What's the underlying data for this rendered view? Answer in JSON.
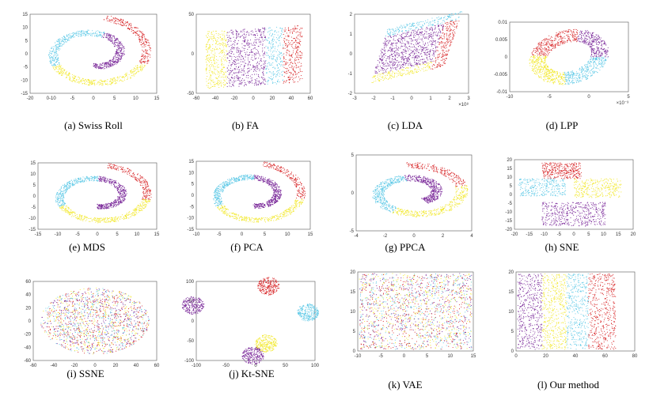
{
  "colors": {
    "purple": "#7b2a9a",
    "yellow": "#f2e82a",
    "cyan": "#5bc8e6",
    "red": "#d8282a",
    "frame": "#555555"
  },
  "figure": {
    "panels": [
      {
        "id": "a",
        "caption": "(a)  Swiss Roll",
        "shape": "roll3d",
        "yticks": [
          "15",
          "10",
          "5",
          "0",
          "-5",
          "-10",
          "-15"
        ],
        "xticks": [
          "-20",
          "0-10",
          "-5",
          "0",
          "5",
          "10",
          "15"
        ]
      },
      {
        "id": "b",
        "caption": "(b)  FA",
        "shape": "fa",
        "yticks": [
          "50",
          "0",
          "-50"
        ],
        "xticks": [
          "-60",
          "-40",
          "-20",
          "0",
          "20",
          "40",
          "60"
        ]
      },
      {
        "id": "c",
        "caption": "(c)  LDA",
        "shape": "lda",
        "yticks": [
          "2",
          "1",
          "0",
          "-1",
          "-2"
        ],
        "xticks": [
          "-3",
          "-2",
          "-1",
          "0",
          "1",
          "2",
          "3"
        ],
        "exp": "×10⁸"
      },
      {
        "id": "d",
        "caption": "(d)  LPP",
        "shape": "lpp",
        "yticks": [
          "0.01",
          "0.005",
          "0",
          "-0.005",
          "-0.01"
        ],
        "xticks": [
          "-10",
          "-5",
          "0",
          "5"
        ],
        "exp": "×10⁻³"
      },
      {
        "id": "e",
        "caption": "(e)  MDS",
        "shape": "spiral",
        "yticks": [
          "15",
          "10",
          "5",
          "0",
          "-5",
          "-10",
          "-15"
        ],
        "xticks": [
          "-15",
          "-10",
          "-5",
          "0",
          "5",
          "10",
          "15"
        ]
      },
      {
        "id": "f",
        "caption": "(f)  PCA",
        "shape": "spiral",
        "yticks": [
          "15",
          "10",
          "5",
          "0",
          "-5",
          "-10",
          "-15"
        ],
        "xticks": [
          "-10",
          "-5",
          "0",
          "5",
          "10",
          "15"
        ]
      },
      {
        "id": "g",
        "caption": "(g)  PPCA",
        "shape": "ppca",
        "yticks": [
          "5",
          "0",
          "-5"
        ],
        "xticks": [
          "-4",
          "-2",
          "0",
          "2",
          "4"
        ]
      },
      {
        "id": "h",
        "caption": "(h)  SNE",
        "shape": "sne",
        "yticks": [
          "20",
          "15",
          "10",
          "5",
          "0",
          "-5",
          "-10",
          "-15",
          "-20"
        ],
        "xticks": [
          "-20",
          "-15",
          "-10",
          "-5",
          "0",
          "5",
          "10",
          "15",
          "20"
        ]
      },
      {
        "id": "i",
        "caption": "(i)  SSNE",
        "shape": "ssne",
        "yticks": [
          "60",
          "40",
          "20",
          "0",
          "-20",
          "-40",
          "-60"
        ],
        "xticks": [
          "-60",
          "-40",
          "-20",
          "0",
          "20",
          "40",
          "60"
        ]
      },
      {
        "id": "j",
        "caption": "(j)  Kt-SNE",
        "shape": "ktsne",
        "yticks": [
          "100",
          "50",
          "0",
          "-50",
          "-100"
        ],
        "xticks": [
          "-100",
          "-50",
          "0",
          "50",
          "100"
        ]
      },
      {
        "id": "k",
        "caption": "(k)  VAE",
        "shape": "vae",
        "yticks": [
          "20",
          "15",
          "10",
          "5",
          "0"
        ],
        "xticks": [
          "-10",
          "-5",
          "0",
          "5",
          "10",
          "15"
        ]
      },
      {
        "id": "l",
        "caption": "(l)  Our method",
        "shape": "ours",
        "yticks": [
          "20",
          "15",
          "10",
          "5",
          "0"
        ],
        "xticks": [
          "0",
          "20",
          "40",
          "60",
          "80"
        ]
      }
    ]
  }
}
